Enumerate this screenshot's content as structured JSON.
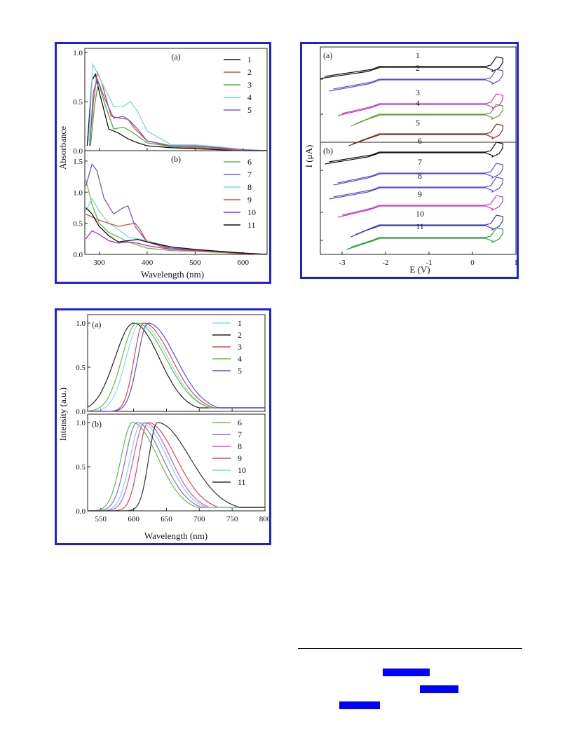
{
  "absorbance": {
    "ylabel": "Absorbance",
    "xlabel": "Wavelength (nm)",
    "xlim": [
      270,
      650
    ],
    "xticks": [
      300,
      400,
      500,
      600
    ],
    "a": {
      "label": "(a)",
      "ylim": [
        0,
        1.0
      ],
      "yticks": [
        "0.0",
        "0.5",
        "1.0"
      ],
      "legend": [
        "1",
        "2",
        "3",
        "4",
        "5"
      ],
      "colors": [
        "#111111",
        "#d24b4b",
        "#5aa840",
        "#7fd6d6",
        "#7a58c4"
      ]
    },
    "b": {
      "label": "(b)",
      "ylim": [
        0,
        1.6
      ],
      "yticks": [
        "0.0",
        "0.5",
        "1.0",
        "1.5"
      ],
      "legend": [
        "6",
        "7",
        "8",
        "9",
        "10",
        "11"
      ],
      "colors": [
        "#6ab84a",
        "#7a58c4",
        "#7fd6d6",
        "#d24b4b",
        "#b02cb0",
        "#111111"
      ]
    }
  },
  "cv": {
    "ylabel": "I (μA)",
    "xlabel": "E (V)",
    "xticks": [
      "-3",
      "-2",
      "-1",
      "0",
      "1"
    ],
    "a": {
      "label": "(a)",
      "curves": [
        "1",
        "2",
        "3",
        "4",
        "5"
      ],
      "colors": [
        "#111111",
        "#5b50d6",
        "#c83cc8",
        "#6a9a2e",
        "#8b2a2a"
      ]
    },
    "b": {
      "label": "(b)",
      "curves": [
        "6",
        "7",
        "8",
        "9",
        "10",
        "11"
      ],
      "colors": [
        "#111111",
        "#5b50d6",
        "#5b50d6",
        "#c83cc8",
        "#3a3aa8",
        "#2e9a3e"
      ]
    }
  },
  "pl": {
    "ylabel": "Intensity (a.u.)",
    "xlabel": "Wavelength (nm)",
    "xlim": [
      530,
      800
    ],
    "xticks": [
      "550",
      "600",
      "650",
      "700",
      "750",
      "800"
    ],
    "yticks": [
      "0.0",
      "0.5",
      "1.0"
    ],
    "a": {
      "label": "(a)",
      "legend": [
        "1",
        "2",
        "3",
        "4",
        "5"
      ],
      "colors": [
        "#8fd8e8",
        "#222222",
        "#d24b4b",
        "#6ab84a",
        "#5b50d6"
      ]
    },
    "b": {
      "label": "(b)",
      "legend": [
        "6",
        "7",
        "8",
        "9",
        "10",
        "11"
      ],
      "colors": [
        "#6ab84a",
        "#8a6ad0",
        "#d050d0",
        "#d24b4b",
        "#7fd6d6",
        "#333333"
      ]
    }
  },
  "chart_data": [
    {
      "type": "line",
      "ylabel": "Absorbance",
      "xlabel": "Wavelength (nm)",
      "subplot": "(a)",
      "xlim": [
        270,
        650
      ],
      "ylim": [
        0,
        1.0
      ],
      "series": [
        {
          "name": "1",
          "x": [
            275,
            285,
            292,
            300,
            320,
            340,
            360,
            380,
            400,
            450,
            500,
            550,
            600,
            650
          ],
          "y": [
            0.05,
            0.72,
            0.78,
            0.6,
            0.22,
            0.18,
            0.12,
            0.08,
            0.05,
            0.03,
            0.02,
            0.01,
            0.0,
            0.0
          ]
        },
        {
          "name": "2",
          "x": [
            280,
            288,
            296,
            305,
            325,
            345,
            360,
            375,
            400,
            450,
            500,
            550,
            600,
            650
          ],
          "y": [
            0.05,
            0.5,
            0.8,
            0.7,
            0.35,
            0.33,
            0.32,
            0.22,
            0.1,
            0.04,
            0.03,
            0.02,
            0.0,
            0.0
          ]
        },
        {
          "name": "3",
          "x": [
            282,
            290,
            298,
            310,
            330,
            350,
            365,
            380,
            400,
            450,
            500,
            550,
            600,
            650
          ],
          "y": [
            0.05,
            0.45,
            0.7,
            0.5,
            0.22,
            0.24,
            0.2,
            0.15,
            0.08,
            0.04,
            0.04,
            0.03,
            0.01,
            0.0
          ]
        },
        {
          "name": "4",
          "x": [
            278,
            287,
            295,
            310,
            330,
            350,
            365,
            380,
            400,
            450,
            500,
            550,
            600,
            650
          ],
          "y": [
            0.1,
            0.88,
            0.8,
            0.65,
            0.45,
            0.45,
            0.5,
            0.4,
            0.2,
            0.06,
            0.06,
            0.04,
            0.01,
            0.0
          ]
        },
        {
          "name": "5",
          "x": [
            280,
            288,
            296,
            310,
            330,
            350,
            365,
            380,
            400,
            450,
            500,
            550,
            600,
            650
          ],
          "y": [
            0.05,
            0.6,
            0.73,
            0.55,
            0.33,
            0.35,
            0.3,
            0.22,
            0.1,
            0.05,
            0.05,
            0.03,
            0.01,
            0.0
          ]
        }
      ]
    },
    {
      "type": "line",
      "ylabel": "Absorbance",
      "xlabel": "Wavelength (nm)",
      "subplot": "(b)",
      "xlim": [
        270,
        650
      ],
      "ylim": [
        0,
        1.6
      ],
      "series": [
        {
          "name": "6",
          "x": [
            272,
            285,
            300,
            320,
            340,
            360,
            380,
            400,
            450,
            500,
            550,
            600,
            650
          ],
          "y": [
            1.2,
            0.8,
            0.5,
            0.35,
            0.28,
            0.2,
            0.15,
            0.1,
            0.06,
            0.05,
            0.03,
            0.01,
            0.0
          ]
        },
        {
          "name": "7",
          "x": [
            272,
            285,
            295,
            310,
            330,
            350,
            360,
            375,
            400,
            450,
            500,
            550,
            600,
            650
          ],
          "y": [
            1.1,
            1.45,
            1.35,
            0.9,
            0.65,
            0.75,
            0.78,
            0.45,
            0.2,
            0.1,
            0.08,
            0.05,
            0.02,
            0.0
          ]
        },
        {
          "name": "8",
          "x": [
            272,
            285,
            300,
            320,
            340,
            360,
            380,
            400,
            450,
            500,
            550,
            600,
            650
          ],
          "y": [
            0.7,
            0.9,
            0.7,
            0.5,
            0.4,
            0.28,
            0.25,
            0.22,
            0.12,
            0.08,
            0.05,
            0.02,
            0.0
          ]
        },
        {
          "name": "9",
          "x": [
            272,
            285,
            300,
            320,
            340,
            360,
            375,
            385,
            400,
            450,
            500,
            550,
            600,
            650
          ],
          "y": [
            0.65,
            0.6,
            0.55,
            0.5,
            0.45,
            0.48,
            0.5,
            0.4,
            0.2,
            0.08,
            0.06,
            0.04,
            0.01,
            0.0
          ]
        },
        {
          "name": "10",
          "x": [
            272,
            285,
            300,
            320,
            340,
            360,
            380,
            400,
            450,
            500,
            550,
            600,
            650
          ],
          "y": [
            0.25,
            0.38,
            0.32,
            0.22,
            0.18,
            0.2,
            0.18,
            0.14,
            0.08,
            0.07,
            0.05,
            0.02,
            0.0
          ]
        },
        {
          "name": "11",
          "x": [
            272,
            285,
            300,
            320,
            340,
            360,
            380,
            400,
            450,
            500,
            550,
            600,
            650
          ],
          "y": [
            0.75,
            0.65,
            0.45,
            0.3,
            0.2,
            0.22,
            0.24,
            0.2,
            0.12,
            0.08,
            0.05,
            0.02,
            0.0
          ]
        }
      ]
    },
    {
      "type": "line",
      "ylabel": "I (μA)",
      "xlabel": "E (V)",
      "xlim": [
        -3.5,
        1
      ],
      "note_series": [
        "1",
        "2",
        "3",
        "4",
        "5",
        "6",
        "7",
        "8",
        "9",
        "10",
        "11"
      ]
    },
    {
      "type": "line",
      "ylabel": "Intensity (a.u.)",
      "xlabel": "Wavelength (nm)",
      "subplot": "(a)",
      "xlim": [
        530,
        800
      ],
      "ylim": [
        0,
        1.0
      ],
      "series": [
        {
          "name": "1",
          "peak": 610,
          "width_left": 30,
          "width_right": 60
        },
        {
          "name": "2",
          "peak": 600,
          "width_left": 40,
          "width_right": 55
        },
        {
          "name": "3",
          "peak": 615,
          "width_left": 20,
          "width_right": 60
        },
        {
          "name": "4",
          "peak": 605,
          "width_left": 32,
          "width_right": 62
        },
        {
          "name": "5",
          "peak": 622,
          "width_left": 22,
          "width_right": 60
        }
      ]
    },
    {
      "type": "line",
      "ylabel": "Intensity (a.u.)",
      "xlabel": "Wavelength (nm)",
      "subplot": "(b)",
      "xlim": [
        530,
        800
      ],
      "ylim": [
        0,
        1.0
      ],
      "series": [
        {
          "name": "6",
          "peak": 598,
          "width_left": 24,
          "width_right": 55
        },
        {
          "name": "7",
          "peak": 605,
          "width_left": 24,
          "width_right": 55
        },
        {
          "name": "8",
          "peak": 617,
          "width_left": 24,
          "width_right": 55
        },
        {
          "name": "9",
          "peak": 622,
          "width_left": 20,
          "width_right": 60
        },
        {
          "name": "10",
          "peak": 612,
          "width_left": 24,
          "width_right": 55
        },
        {
          "name": "11",
          "peak": 636,
          "width_left": 18,
          "width_right": 70
        }
      ]
    }
  ]
}
